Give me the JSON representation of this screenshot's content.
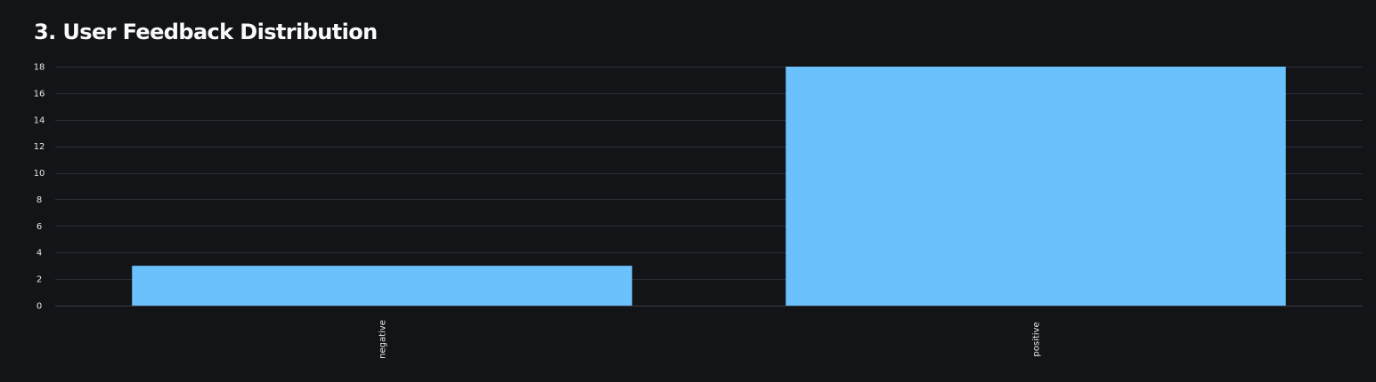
{
  "page": {
    "title": "3. User Feedback Distribution"
  },
  "chart_data": {
    "type": "bar",
    "categories": [
      "negative",
      "positive"
    ],
    "values": [
      3,
      18
    ],
    "title": "",
    "xlabel": "",
    "ylabel": "",
    "ylim": [
      0,
      18
    ],
    "yticks": [
      0,
      2,
      4,
      6,
      8,
      10,
      12,
      14,
      16,
      18
    ],
    "grid": true,
    "legend": "none",
    "bar_color": "#6ac1fc",
    "background": "#121418"
  }
}
